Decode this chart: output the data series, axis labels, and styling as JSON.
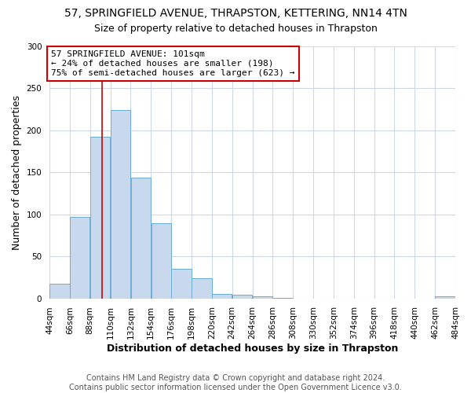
{
  "title": "57, SPRINGFIELD AVENUE, THRAPSTON, KETTERING, NN14 4TN",
  "subtitle": "Size of property relative to detached houses in Thrapston",
  "xlabel": "Distribution of detached houses by size in Thrapston",
  "ylabel": "Number of detached properties",
  "bin_edges": [
    44,
    66,
    88,
    110,
    132,
    154,
    176,
    198,
    220,
    242,
    264,
    286,
    308,
    330,
    352,
    374,
    396,
    418,
    440,
    462,
    484
  ],
  "bar_heights": [
    17,
    97,
    192,
    224,
    144,
    89,
    35,
    24,
    5,
    4,
    2,
    1,
    0,
    0,
    0,
    0,
    0,
    0,
    0,
    2
  ],
  "bar_color": "#c8d9ee",
  "bar_edgecolor": "#6baed6",
  "vline_x": 101,
  "vline_color": "#cc0000",
  "annotation_text": "57 SPRINGFIELD AVENUE: 101sqm\n← 24% of detached houses are smaller (198)\n75% of semi-detached houses are larger (623) →",
  "annotation_box_edgecolor": "#cc0000",
  "annotation_box_facecolor": "#ffffff",
  "ylim": [
    0,
    300
  ],
  "yticks": [
    0,
    50,
    100,
    150,
    200,
    250,
    300
  ],
  "tick_labels": [
    "44sqm",
    "66sqm",
    "88sqm",
    "110sqm",
    "132sqm",
    "154sqm",
    "176sqm",
    "198sqm",
    "220sqm",
    "242sqm",
    "264sqm",
    "286sqm",
    "308sqm",
    "330sqm",
    "352sqm",
    "374sqm",
    "396sqm",
    "418sqm",
    "440sqm",
    "462sqm",
    "484sqm"
  ],
  "footer_line1": "Contains HM Land Registry data © Crown copyright and database right 2024.",
  "footer_line2": "Contains public sector information licensed under the Open Government Licence v3.0.",
  "background_color": "#ffffff",
  "plot_background_color": "#ffffff",
  "grid_color": "#d0d8e8",
  "title_fontsize": 10,
  "subtitle_fontsize": 9,
  "axis_label_fontsize": 9,
  "tick_fontsize": 7.5,
  "annotation_fontsize": 8,
  "footer_fontsize": 7
}
